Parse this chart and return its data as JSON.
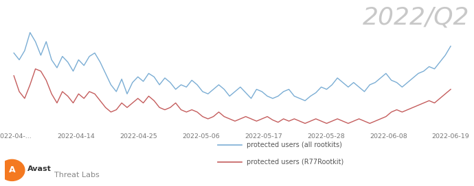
{
  "title": "2022/Q2",
  "title_color": "#c8c8c8",
  "title_fontsize": 26,
  "x_tick_labels": [
    "2022-04-...",
    "2022-04-14",
    "2022-04-25",
    "2022-05-06",
    "2022-05-17",
    "2022-05-28",
    "2022-06-08",
    "2022-06-19"
  ],
  "legend_labels": [
    "protected users (all rootkits)",
    "protected users (R77Rootkit)"
  ],
  "line_colors": [
    "#7aadd4",
    "#c45c5c"
  ],
  "background_color": "#ffffff",
  "all_rootkits": [
    78,
    72,
    80,
    96,
    88,
    76,
    88,
    72,
    65,
    75,
    70,
    62,
    72,
    67,
    75,
    78,
    70,
    60,
    50,
    44,
    55,
    42,
    52,
    57,
    53,
    60,
    57,
    50,
    56,
    52,
    46,
    50,
    48,
    54,
    50,
    44,
    42,
    46,
    50,
    46,
    40,
    44,
    48,
    43,
    38,
    46,
    44,
    40,
    38,
    40,
    44,
    46,
    40,
    38,
    36,
    40,
    43,
    48,
    46,
    50,
    56,
    52,
    48,
    52,
    48,
    44,
    50,
    52,
    56,
    60,
    54,
    52,
    48,
    52,
    56,
    60,
    62,
    66,
    64,
    70,
    76,
    84
  ],
  "r77_rootkit": [
    58,
    44,
    38,
    50,
    64,
    62,
    54,
    42,
    34,
    44,
    40,
    34,
    42,
    38,
    44,
    42,
    36,
    30,
    26,
    28,
    34,
    30,
    34,
    38,
    34,
    40,
    36,
    30,
    28,
    30,
    34,
    28,
    26,
    28,
    26,
    22,
    20,
    22,
    26,
    22,
    20,
    18,
    20,
    22,
    20,
    18,
    20,
    22,
    19,
    17,
    20,
    18,
    20,
    18,
    16,
    18,
    20,
    18,
    16,
    18,
    20,
    18,
    16,
    18,
    20,
    18,
    16,
    18,
    20,
    22,
    26,
    28,
    26,
    28,
    30,
    32,
    34,
    36,
    34,
    38,
    42,
    46
  ],
  "footer_text_bold": "Avast",
  "footer_text_light": "Threat Labs",
  "avast_orange": "#f47920",
  "avast_white": "#ffffff"
}
